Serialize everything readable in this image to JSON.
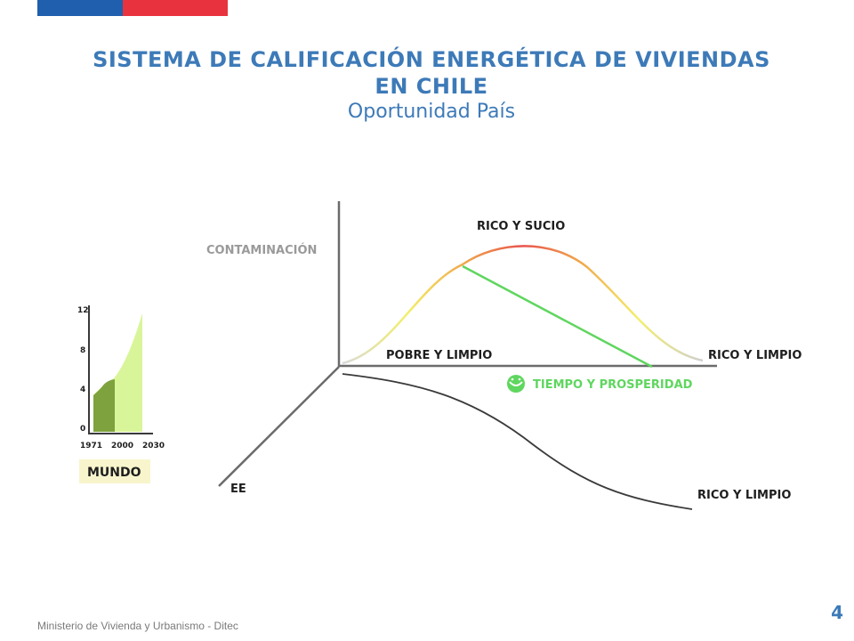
{
  "header": {
    "title_line1": "SISTEMA DE CALIFICACIÓN ENERGÉTICA DE VIVIENDAS",
    "title_line2": "EN CHILE",
    "subtitle": "Oportunidad País"
  },
  "colors": {
    "brand_blue": "#1f5fae",
    "brand_red": "#e8333f",
    "title": "#3d7ab8",
    "green": "#5fd65f"
  },
  "diagram": {
    "y_axis_label": "CONTAMINACIÓN",
    "z_axis_label": "EE",
    "peak_label": "RICO Y SUCIO",
    "left_label": "POBRE Y LIMPIO",
    "right_label": "RICO Y LIMPIO",
    "bottom_right_label": "RICO Y LIMPIO",
    "arrow_label": "TIEMPO Y PROSPERIDAD",
    "arrow_icon": "smiley-icon"
  },
  "mini_chart": {
    "y_ticks": [
      "12",
      "8",
      "4",
      "0"
    ],
    "x_ticks": [
      "1971",
      "2000",
      "2030"
    ],
    "caption": "MUNDO"
  },
  "footer": {
    "text": "Ministerio de Vivienda y Urbanismo - Ditec",
    "page_number": "4"
  }
}
